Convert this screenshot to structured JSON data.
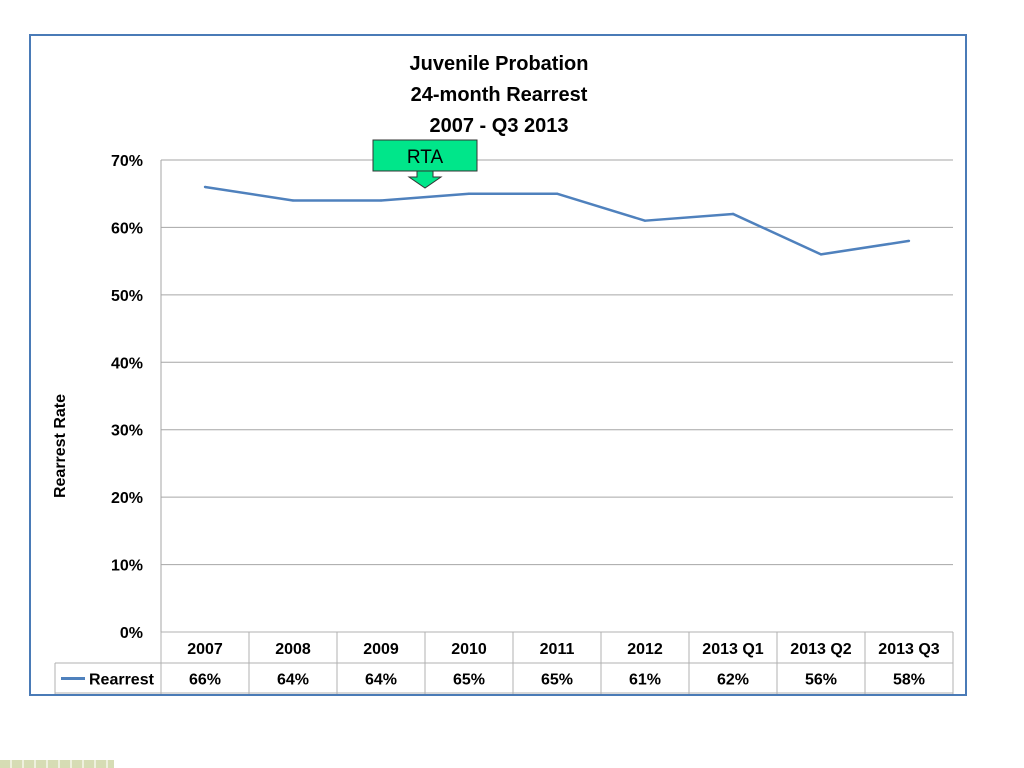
{
  "chart_data": {
    "type": "line",
    "title": [
      "Juvenile Probation",
      "24-month Rearrest",
      "2007 - Q3 2013"
    ],
    "xlabel": "",
    "ylabel": "Rearrest Rate",
    "categories": [
      "2007",
      "2008",
      "2009",
      "2010",
      "2011",
      "2012",
      "2013 Q1",
      "2013 Q2",
      "2013 Q3"
    ],
    "series": [
      {
        "name": "Rearrest",
        "values": [
          66,
          64,
          64,
          65,
          65,
          61,
          62,
          56,
          58
        ],
        "labels": [
          "66%",
          "64%",
          "64%",
          "65%",
          "65%",
          "61%",
          "62%",
          "56%",
          "58%"
        ],
        "color": "#4f81bd"
      }
    ],
    "ylim": [
      0,
      70
    ],
    "yticks": [
      0,
      10,
      20,
      30,
      40,
      50,
      60,
      70
    ],
    "ytick_labels": [
      "0%",
      "10%",
      "20%",
      "30%",
      "40%",
      "50%",
      "60%",
      "70%"
    ],
    "grid": true,
    "data_table": true,
    "annotation": {
      "text": "RTA",
      "category": "2009",
      "fill": "#00e68a"
    }
  },
  "colors": {
    "frame": "#4a7bb7",
    "grid": "#a6a6a6",
    "table_border": "#b0b0b0"
  }
}
